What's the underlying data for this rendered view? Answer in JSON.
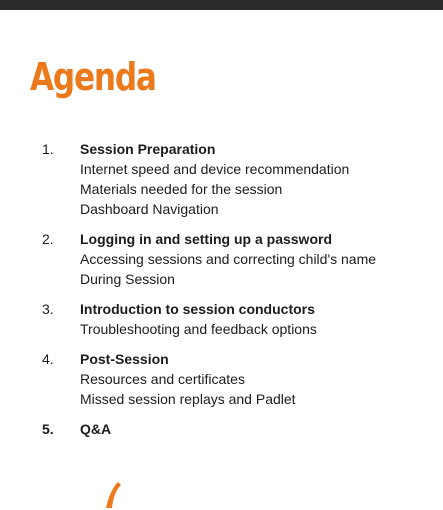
{
  "title": "Agenda",
  "colors": {
    "accent": "#EC7A1C",
    "text": "#1C1C1C"
  },
  "items": [
    {
      "number": "1.",
      "heading": "Session Preparation",
      "details": [
        "Internet speed and device recommendation",
        "Materials needed for the session",
        "Dashboard Navigation"
      ]
    },
    {
      "number": "2.",
      "heading": "Logging in and setting up a password",
      "details": [
        "Accessing sessions and correcting child's name",
        "During Session"
      ]
    },
    {
      "number": "3.",
      "heading": "Introduction to session conductors",
      "details": [
        "Troubleshooting and feedback options"
      ]
    },
    {
      "number": "4.",
      "heading": "Post-Session",
      "details": [
        "Resources and certificates",
        "Missed session replays and Padlet"
      ]
    },
    {
      "number": "5.",
      "heading": "Q&A",
      "details": []
    }
  ]
}
